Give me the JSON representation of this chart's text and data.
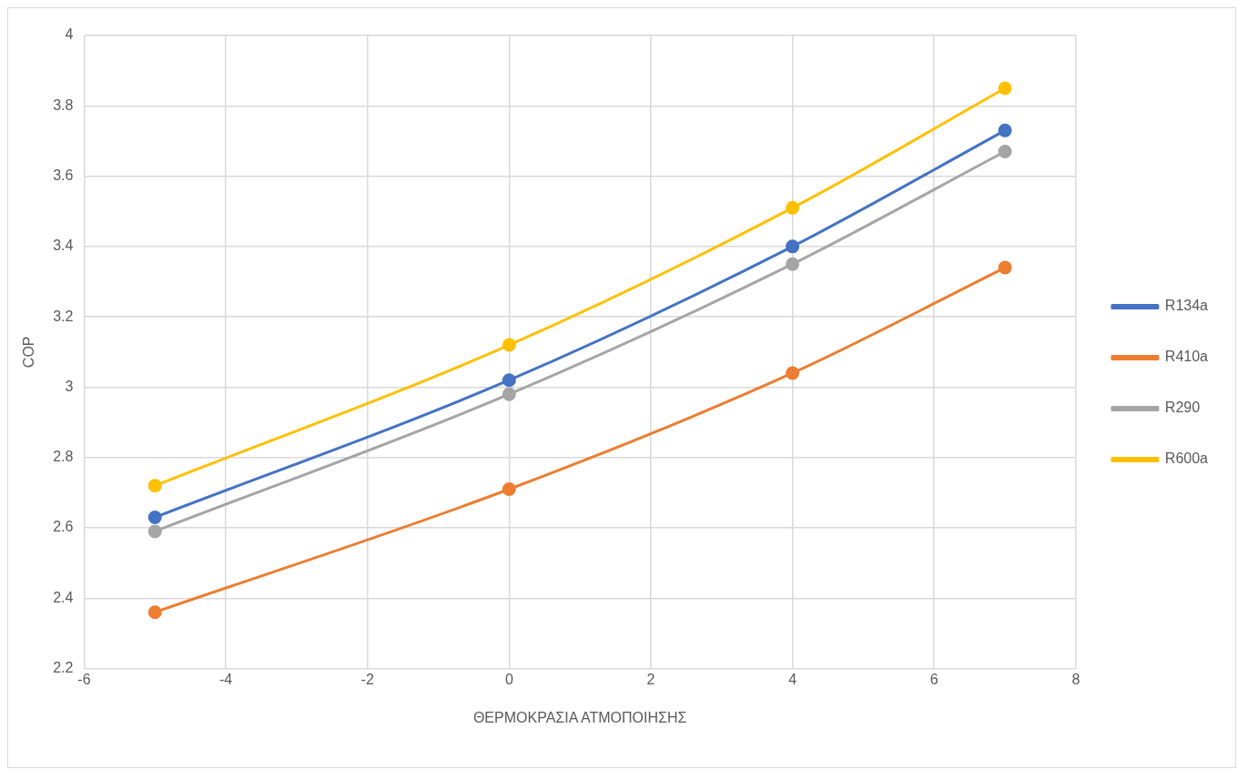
{
  "chart_data": {
    "type": "line",
    "xlabel": "ΘΕΡΜΟΚΡΑΣΙΑ ΑΤΜΟΠΟΙΗΣΗΣ",
    "ylabel": "COP",
    "x": [
      -5,
      0,
      4,
      7
    ],
    "series": [
      {
        "name": "R134a",
        "color": "#4472c4",
        "values": [
          2.63,
          3.02,
          3.4,
          3.73
        ]
      },
      {
        "name": "R410a",
        "color": "#ed7d31",
        "values": [
          2.36,
          2.71,
          3.04,
          3.34
        ]
      },
      {
        "name": "R290",
        "color": "#a5a5a5",
        "values": [
          2.59,
          2.98,
          3.35,
          3.67
        ]
      },
      {
        "name": "R600a",
        "color": "#ffc000",
        "values": [
          2.72,
          3.12,
          3.51,
          3.85
        ]
      }
    ],
    "xlim": [
      -6,
      8
    ],
    "xticks": [
      -6,
      -4,
      -2,
      0,
      2,
      4,
      6,
      8
    ],
    "ylim": [
      2.2,
      4
    ],
    "yticks": [
      2.2,
      2.4,
      2.6,
      2.8,
      3,
      3.2,
      3.4,
      3.6,
      3.8,
      4
    ],
    "grid": true,
    "legend": "right",
    "marker": "circle",
    "line_style": "solid"
  }
}
